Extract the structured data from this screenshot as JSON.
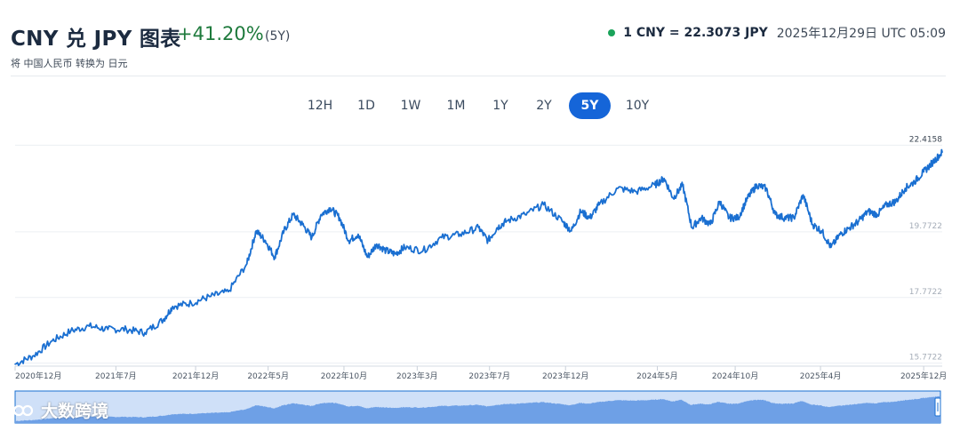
{
  "header": {
    "title": "CNY 兑 JPY 图表",
    "change": "+41.20%",
    "period": "(5Y)",
    "subtitle": "将 中国人民币 转换为 日元",
    "rate": "1 CNY = 22.3073 JPY",
    "timestamp": "2025年12月29日 UTC 05:09"
  },
  "tabs": [
    "12H",
    "1D",
    "1W",
    "1M",
    "1Y",
    "2Y",
    "5Y",
    "10Y"
  ],
  "active_tab": "5Y",
  "watermark": "大数跨境",
  "colors": {
    "line": "#1a6fd1",
    "up": "#1e7a3c",
    "active_tab": "#1565d8",
    "navigator_fill": "#6ea0e6",
    "navigator_bg": "#cfe0f8"
  },
  "chart_data": {
    "type": "line",
    "title": "",
    "xlabel": "",
    "ylabel": "",
    "ylim": [
      15.68,
      22.56
    ],
    "y_tick_labels": [
      "22.4158",
      "19.7722",
      "17.7722",
      "15.7722"
    ],
    "y_ticks": [
      22.4158,
      19.7722,
      17.7722,
      15.7722
    ],
    "x_tick_labels": [
      "2020年12月",
      "2021年7月",
      "2021年12月",
      "2022年5月",
      "2022年10月",
      "2023年3月",
      "2023年7月",
      "2023年12月",
      "2024年5月",
      "2024年10月",
      "2025年4月",
      "2025年12月"
    ],
    "x_tick_positions": [
      0.0,
      0.1087,
      0.1947,
      0.2729,
      0.3547,
      0.4337,
      0.5117,
      0.5937,
      0.6927,
      0.7767,
      0.8687,
      0.98
    ],
    "series": [
      {
        "x": [
          0.0,
          0.02,
          0.04,
          0.06,
          0.08,
          0.1,
          0.12,
          0.14,
          0.16,
          0.17,
          0.19,
          0.21,
          0.23,
          0.25,
          0.26,
          0.27,
          0.28,
          0.29,
          0.3,
          0.31,
          0.32,
          0.33,
          0.34,
          0.35,
          0.36,
          0.37,
          0.38,
          0.39,
          0.4,
          0.41,
          0.42,
          0.44,
          0.46,
          0.48,
          0.5,
          0.51,
          0.52,
          0.53,
          0.55,
          0.57,
          0.59,
          0.6,
          0.61,
          0.62,
          0.63,
          0.65,
          0.67,
          0.69,
          0.7,
          0.71,
          0.72,
          0.73,
          0.74,
          0.75,
          0.76,
          0.77,
          0.78,
          0.79,
          0.8,
          0.81,
          0.82,
          0.83,
          0.84,
          0.85,
          0.86,
          0.87,
          0.88,
          0.89,
          0.9,
          0.91,
          0.92,
          0.93,
          0.94,
          0.95,
          0.96,
          0.97,
          0.98,
          0.99,
          1.0
        ],
        "values": [
          15.74,
          16.0,
          16.45,
          16.75,
          16.9,
          16.8,
          16.8,
          16.7,
          17.1,
          17.5,
          17.6,
          17.8,
          17.95,
          18.8,
          19.8,
          19.5,
          19.0,
          19.8,
          20.3,
          20.0,
          19.6,
          20.3,
          20.5,
          20.2,
          19.5,
          19.7,
          19.0,
          19.4,
          19.2,
          19.1,
          19.3,
          19.2,
          19.6,
          19.7,
          19.9,
          19.5,
          19.9,
          20.1,
          20.3,
          20.6,
          20.1,
          19.8,
          20.4,
          20.2,
          20.6,
          21.1,
          21.0,
          21.2,
          21.4,
          20.8,
          21.2,
          19.9,
          20.2,
          20.0,
          20.7,
          20.2,
          20.2,
          20.8,
          21.2,
          21.1,
          20.3,
          20.2,
          20.2,
          20.9,
          20.0,
          19.8,
          19.3,
          19.7,
          19.9,
          20.1,
          20.4,
          20.3,
          20.6,
          20.7,
          21.1,
          21.3,
          21.6,
          21.9,
          22.2
        ]
      }
    ],
    "grid": true,
    "legend": "none"
  }
}
